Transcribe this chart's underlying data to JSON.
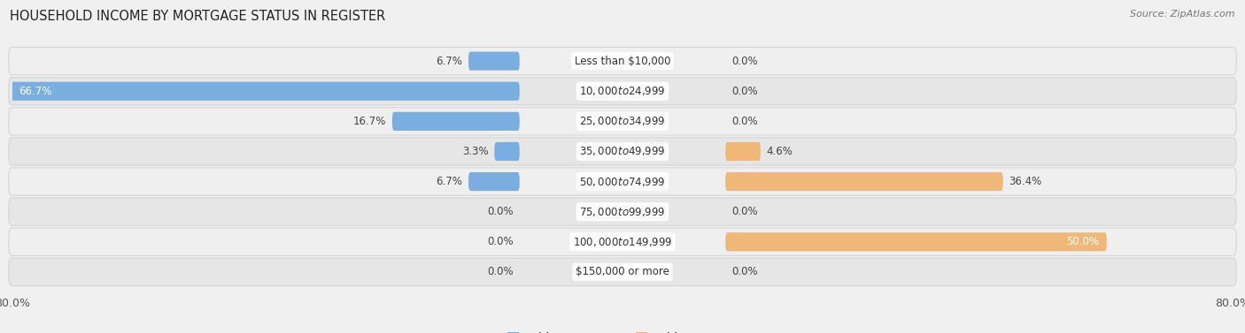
{
  "title": "HOUSEHOLD INCOME BY MORTGAGE STATUS IN REGISTER",
  "source": "Source: ZipAtlas.com",
  "categories": [
    "Less than $10,000",
    "$10,000 to $24,999",
    "$25,000 to $34,999",
    "$35,000 to $49,999",
    "$50,000 to $74,999",
    "$75,000 to $99,999",
    "$100,000 to $149,999",
    "$150,000 or more"
  ],
  "without_mortgage": [
    6.7,
    66.7,
    16.7,
    3.3,
    6.7,
    0.0,
    0.0,
    0.0
  ],
  "with_mortgage": [
    0.0,
    0.0,
    0.0,
    4.6,
    36.4,
    0.0,
    50.0,
    0.0
  ],
  "color_without": "#7aade0",
  "color_with": "#f0b878",
  "axis_min": -80.0,
  "axis_max": 80.0,
  "bg_color": "#f0f0f0",
  "row_colors": [
    "#efefef",
    "#e6e6e6"
  ],
  "label_fontsize": 8.5,
  "cat_fontsize": 8.5,
  "title_fontsize": 10.5,
  "source_fontsize": 8.0
}
